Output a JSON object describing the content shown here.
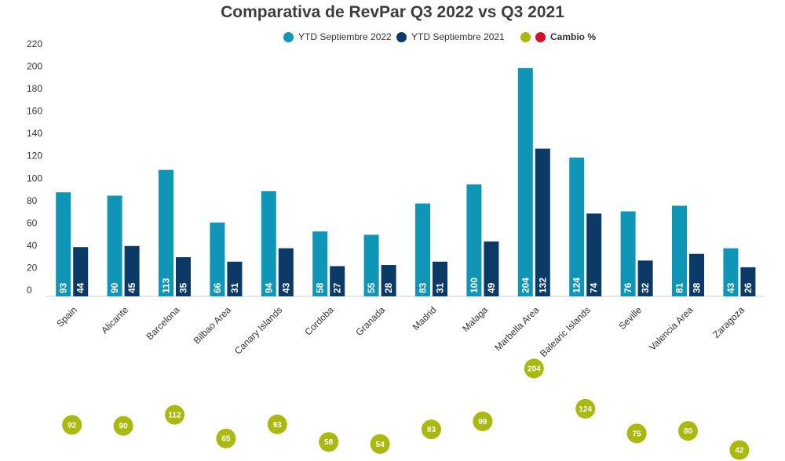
{
  "chart_data": {
    "type": "bar",
    "title": "Comparativa de RevPar Q3 2022 vs Q3 2021",
    "categories": [
      "Spain",
      "Alicante",
      "Barcelona",
      "Bilbao Area",
      "Canary Islands",
      "Cordoba",
      "Granada",
      "Madrid",
      "Malaga",
      "Marbella Area",
      "Balearic Islands",
      "Seville",
      "Valencia Area",
      "Zaragoza"
    ],
    "series": [
      {
        "name": "YTD Septiembre 2022",
        "color": "#0f95b5",
        "values": [
          93,
          90,
          113,
          66,
          94,
          58,
          55,
          83,
          100,
          204,
          124,
          76,
          81,
          43
        ],
        "labels": [
          "93",
          "90",
          "113",
          "66",
          "94",
          "58",
          "55",
          "83",
          "100",
          "204",
          "124",
          "76",
          "81",
          "43"
        ]
      },
      {
        "name": "YTD Septiembre 2021",
        "color": "#0b3a66",
        "values": [
          44,
          45,
          35,
          31,
          43,
          27,
          28,
          31,
          49,
          132,
          74,
          32,
          38,
          26
        ],
        "labels": [
          "44",
          "45",
          "35",
          "31",
          "43",
          "27",
          "28",
          "31",
          "49",
          "132",
          "74",
          "32",
          "38",
          "26"
        ]
      }
    ],
    "bubbles": {
      "name": "Cambio %",
      "color": "#a9b90f",
      "values": [
        92,
        90,
        112,
        65,
        93,
        58,
        54,
        83,
        99,
        204,
        124,
        75,
        80,
        42
      ],
      "labels": [
        "92",
        "90",
        "112",
        "65",
        "93",
        "58",
        "54",
        "83",
        "99",
        "204",
        "124",
        "75",
        "80",
        "42"
      ]
    },
    "ylim": [
      0,
      220
    ],
    "yticks": [
      "0",
      "20",
      "40",
      "60",
      "80",
      "100",
      "120",
      "140",
      "160",
      "180",
      "200",
      "220"
    ],
    "grid": false,
    "legend_position": "top-center"
  },
  "legend": {
    "items": [
      {
        "label": "YTD Septiembre 2022",
        "color": "#0f95b5"
      },
      {
        "label": "YTD Septiembre 2021",
        "color": "#0b3a66"
      },
      {
        "label": "Cambio %",
        "color": "#a9b90f",
        "color2": "#d6102e"
      }
    ]
  }
}
